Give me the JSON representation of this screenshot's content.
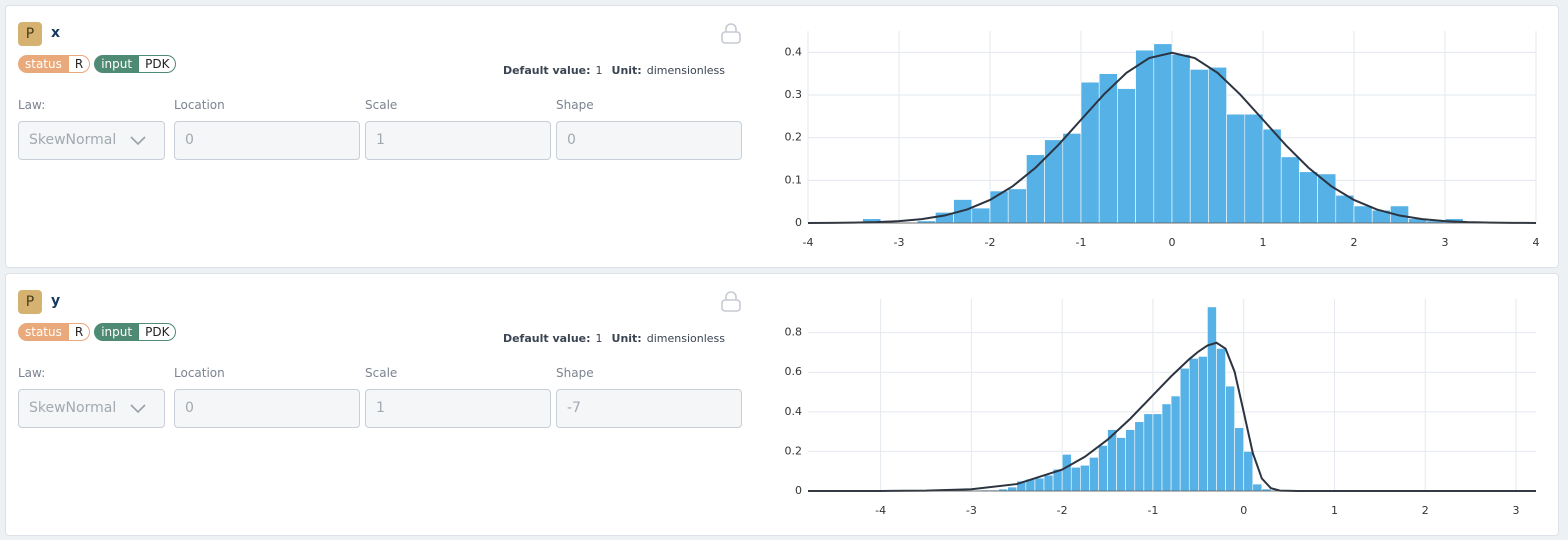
{
  "cards": [
    {
      "badge": "P",
      "name": "x",
      "tags": [
        {
          "label": "status",
          "value": "R"
        },
        {
          "label": "input",
          "value": "PDK"
        }
      ],
      "default_label": "Default value:",
      "default_value": 1,
      "unit_label": "Unit:",
      "unit": "dimensionless",
      "fields": [
        {
          "label": "Law:",
          "value": "SkewNormal"
        },
        {
          "label": "Location",
          "value": 0
        },
        {
          "label": "Scale",
          "value": 1
        },
        {
          "label": "Shape",
          "value": 0
        }
      ]
    },
    {
      "badge": "P",
      "name": "y",
      "tags": [
        {
          "label": "status",
          "value": "R"
        },
        {
          "label": "input",
          "value": "PDK"
        }
      ],
      "default_label": "Default value:",
      "default_value": 1,
      "unit_label": "Unit:",
      "unit": "dimensionless",
      "fields": [
        {
          "label": "Law:",
          "value": "SkewNormal"
        },
        {
          "label": "Location",
          "value": 0
        },
        {
          "label": "Scale",
          "value": 1
        },
        {
          "label": "Shape",
          "value": -7
        }
      ]
    }
  ],
  "chart_data": [
    {
      "type": "histogram",
      "color": "#56b1e7",
      "grid": true,
      "bins": [
        -3.4,
        -3.2,
        -3.0,
        -2.8,
        -2.6,
        -2.4,
        -2.2,
        -2.0,
        -1.8,
        -1.6,
        -1.4,
        -1.2,
        -1.0,
        -0.8,
        -0.6,
        -0.4,
        -0.2,
        0,
        0.2,
        0.4,
        0.6,
        0.8,
        1.0,
        1.2,
        1.4,
        1.6,
        1.8,
        2.0,
        2.2,
        2.4,
        2.6,
        2.8,
        3.0,
        3.2
      ],
      "values": [
        0.01,
        0,
        0,
        0.005,
        0.025,
        0.055,
        0.035,
        0.075,
        0.08,
        0.16,
        0.195,
        0.21,
        0.33,
        0.35,
        0.315,
        0.405,
        0.42,
        0.395,
        0.36,
        0.365,
        0.255,
        0.255,
        0.22,
        0.155,
        0.12,
        0.115,
        0.065,
        0.04,
        0.03,
        0.04,
        0.01,
        0.005,
        0.01
      ],
      "curve": {
        "color": "#2b3440",
        "x": [
          -4,
          -3.75,
          -3.5,
          -3.25,
          -3,
          -2.75,
          -2.5,
          -2.25,
          -2,
          -1.75,
          -1.5,
          -1.25,
          -1,
          -0.75,
          -0.5,
          -0.25,
          0,
          0.25,
          0.5,
          0.75,
          1,
          1.25,
          1.5,
          1.75,
          2,
          2.25,
          2.5,
          2.75,
          3,
          3.25,
          3.5,
          3.75,
          4
        ],
        "values": [
          0.0001,
          0.0004,
          0.0009,
          0.002,
          0.0044,
          0.0091,
          0.0175,
          0.0317,
          0.054,
          0.0863,
          0.1295,
          0.1826,
          0.242,
          0.3011,
          0.3521,
          0.3867,
          0.3989,
          0.3867,
          0.3521,
          0.3011,
          0.242,
          0.1826,
          0.1295,
          0.0863,
          0.054,
          0.0317,
          0.0175,
          0.0091,
          0.0044,
          0.002,
          0.0009,
          0.0004,
          0.0001
        ]
      },
      "xlim": [
        -4,
        4
      ],
      "xticks": [
        -4,
        -3,
        -2,
        -1,
        0,
        1,
        2,
        3,
        4
      ],
      "ylim": [
        0,
        0.45
      ],
      "yticks": [
        0,
        0.1,
        0.2,
        0.3,
        0.4
      ]
    },
    {
      "type": "histogram",
      "color": "#56b1e7",
      "grid": true,
      "bins": [
        -3.0,
        -2.9,
        -2.8,
        -2.7,
        -2.6,
        -2.5,
        -2.4,
        -2.3,
        -2.2,
        -2.1,
        -2.0,
        -1.9,
        -1.8,
        -1.7,
        -1.6,
        -1.5,
        -1.4,
        -1.3,
        -1.2,
        -1.1,
        -1.0,
        -0.9,
        -0.8,
        -0.7,
        -0.6,
        -0.5,
        -0.4,
        -0.3,
        -0.2,
        -0.1,
        0,
        0.1,
        0.2,
        0.3
      ],
      "values": [
        0.003,
        0.005,
        0.005,
        0.01,
        0.02,
        0.05,
        0.06,
        0.065,
        0.08,
        0.11,
        0.185,
        0.12,
        0.13,
        0.17,
        0.23,
        0.31,
        0.27,
        0.31,
        0.35,
        0.39,
        0.39,
        0.44,
        0.48,
        0.62,
        0.67,
        0.68,
        0.93,
        0.72,
        0.53,
        0.32,
        0.2,
        0.035,
        0.01
      ],
      "curve": {
        "color": "#2b3440",
        "x": [
          -4.8,
          -4,
          -3.5,
          -3,
          -2.5,
          -2,
          -1.75,
          -1.5,
          -1.25,
          -1,
          -0.8,
          -0.6,
          -0.5,
          -0.4,
          -0.3,
          -0.2,
          -0.1,
          0,
          0.1,
          0.2,
          0.3,
          0.4,
          0.6,
          1,
          2,
          3.22
        ],
        "values": [
          0,
          0.0003,
          0.0017,
          0.009,
          0.035,
          0.108,
          0.173,
          0.259,
          0.365,
          0.484,
          0.579,
          0.666,
          0.704,
          0.735,
          0.749,
          0.719,
          0.602,
          0.399,
          0.192,
          0.063,
          0.014,
          0.002,
          0,
          0,
          0,
          0
        ]
      },
      "xlim": [
        -4.8,
        3.22
      ],
      "xticks": [
        -4,
        -3,
        -2,
        -1,
        0,
        1,
        2,
        3
      ],
      "ylim": [
        0,
        0.97
      ],
      "yticks": [
        0,
        0.2,
        0.4,
        0.6,
        0.8
      ]
    }
  ]
}
